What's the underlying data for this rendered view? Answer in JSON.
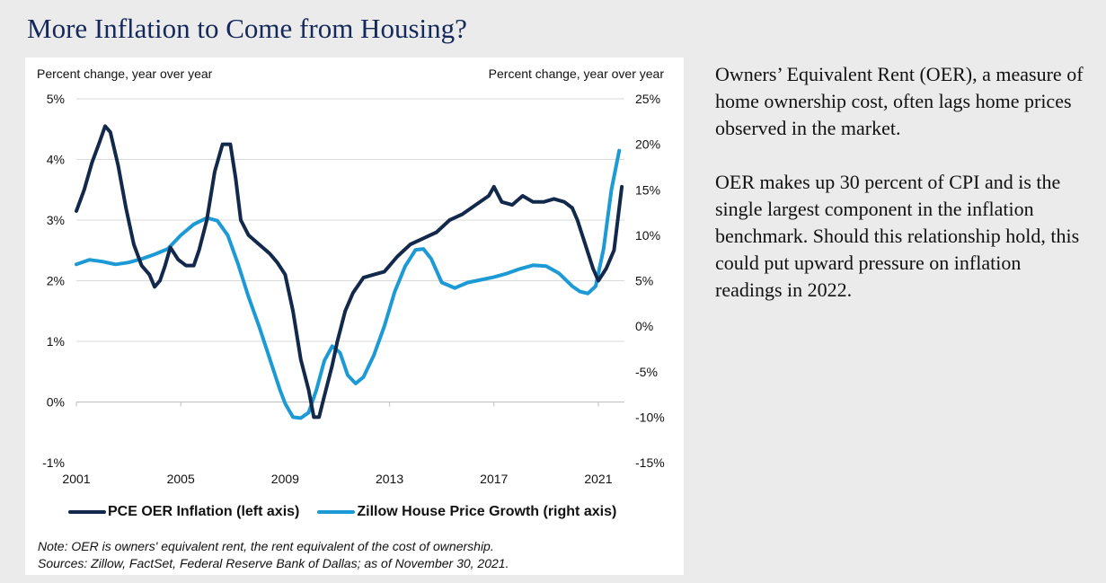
{
  "title": "More Inflation to Come from Housing?",
  "side_text": {
    "paragraph_1": "Owners’ Equivalent Rent (OER), a measure of home ownership cost, often lags home prices observed in the market.",
    "paragraph_2": "OER makes up 30 percent of CPI and is the single largest component in the inflation benchmark. Should this relationship hold, this could put upward pressure on inflation readings in 2022."
  },
  "note": {
    "line_1": "Note: OER is owners' equivalent rent, the rent equivalent of the cost of ownership.",
    "line_2": "Sources: Zillow, FactSet, Federal Reserve Bank of Dallas; as of November 30, 2021."
  },
  "colors": {
    "title": "#14285a",
    "pce_series": "#13294b",
    "zillow_series": "#1c9ad6",
    "gridline": "#d9d9d9"
  },
  "chart_data": {
    "type": "line",
    "left_axis_label": "Percent change, year over year",
    "right_axis_label": "Percent change, year over year",
    "x_ticks": [
      "2001",
      "2005",
      "2009",
      "2013",
      "2017",
      "2021"
    ],
    "y_left_ticks": [
      "-1%",
      "0%",
      "1%",
      "2%",
      "3%",
      "4%",
      "5%"
    ],
    "y_right_ticks": [
      "-15%",
      "-10%",
      "-5%",
      "0%",
      "5%",
      "10%",
      "15%",
      "20%",
      "25%"
    ],
    "y_left_range": [
      -1,
      5
    ],
    "y_right_range": [
      -15,
      25
    ],
    "x_range": [
      2001,
      2022
    ],
    "grid": "horizontal",
    "legend_placement": "bottom",
    "series": [
      {
        "name": "PCE OER Inflation (left axis)",
        "axis": "left",
        "x": [
          2001.0,
          2001.3,
          2001.6,
          2001.9,
          2002.1,
          2002.3,
          2002.6,
          2002.9,
          2003.2,
          2003.5,
          2003.8,
          2004.0,
          2004.2,
          2004.4,
          2004.6,
          2004.9,
          2005.2,
          2005.5,
          2005.7,
          2006.0,
          2006.3,
          2006.6,
          2006.9,
          2007.1,
          2007.3,
          2007.6,
          2008.0,
          2008.4,
          2008.7,
          2009.0,
          2009.3,
          2009.6,
          2009.9,
          2010.1,
          2010.3,
          2010.5,
          2010.8,
          2011.0,
          2011.3,
          2011.6,
          2012.0,
          2012.4,
          2012.8,
          2013.3,
          2013.8,
          2014.3,
          2014.8,
          2015.3,
          2015.8,
          2016.3,
          2016.8,
          2017.0,
          2017.3,
          2017.7,
          2018.1,
          2018.5,
          2018.9,
          2019.3,
          2019.7,
          2020.0,
          2020.2,
          2020.5,
          2020.8,
          2021.0,
          2021.3,
          2021.6,
          2021.9
        ],
        "values": [
          3.15,
          3.5,
          3.95,
          4.3,
          4.55,
          4.45,
          3.9,
          3.2,
          2.6,
          2.25,
          2.1,
          1.9,
          2.0,
          2.25,
          2.55,
          2.35,
          2.25,
          2.25,
          2.5,
          3.0,
          3.8,
          4.25,
          4.25,
          3.7,
          3.0,
          2.75,
          2.6,
          2.45,
          2.3,
          2.1,
          1.5,
          0.7,
          0.2,
          -0.25,
          -0.25,
          0.1,
          0.6,
          1.0,
          1.5,
          1.8,
          2.05,
          2.1,
          2.15,
          2.4,
          2.6,
          2.7,
          2.8,
          3.0,
          3.1,
          3.25,
          3.4,
          3.55,
          3.3,
          3.25,
          3.4,
          3.3,
          3.3,
          3.35,
          3.3,
          3.2,
          3.0,
          2.6,
          2.2,
          2.0,
          2.2,
          2.5,
          3.55
        ]
      },
      {
        "name": "Zillow House Price Growth (right axis)",
        "axis": "right",
        "x": [
          2001.0,
          2001.5,
          2002.0,
          2002.5,
          2003.0,
          2003.5,
          2004.0,
          2004.5,
          2005.0,
          2005.5,
          2006.0,
          2006.4,
          2006.8,
          2007.2,
          2007.6,
          2008.0,
          2008.4,
          2008.8,
          2009.0,
          2009.3,
          2009.6,
          2009.9,
          2010.2,
          2010.5,
          2010.8,
          2011.1,
          2011.4,
          2011.7,
          2012.0,
          2012.4,
          2012.8,
          2013.2,
          2013.6,
          2014.0,
          2014.3,
          2014.6,
          2015.0,
          2015.5,
          2016.0,
          2016.5,
          2017.0,
          2017.5,
          2018.0,
          2018.5,
          2019.0,
          2019.5,
          2020.0,
          2020.3,
          2020.6,
          2020.9,
          2021.2,
          2021.5,
          2021.8
        ],
        "values": [
          6.8,
          7.3,
          7.1,
          6.8,
          7.0,
          7.4,
          7.9,
          8.5,
          10.0,
          11.2,
          11.9,
          11.6,
          10.0,
          6.8,
          3.2,
          0.0,
          -3.5,
          -7.0,
          -8.5,
          -10.0,
          -10.1,
          -9.5,
          -7.0,
          -3.8,
          -2.2,
          -2.9,
          -5.4,
          -6.3,
          -5.6,
          -3.2,
          0.0,
          3.8,
          6.6,
          8.4,
          8.5,
          7.4,
          4.8,
          4.2,
          4.8,
          5.1,
          5.4,
          5.8,
          6.3,
          6.7,
          6.6,
          5.8,
          4.4,
          3.8,
          3.6,
          4.4,
          8.5,
          15.0,
          19.3
        ]
      }
    ]
  }
}
